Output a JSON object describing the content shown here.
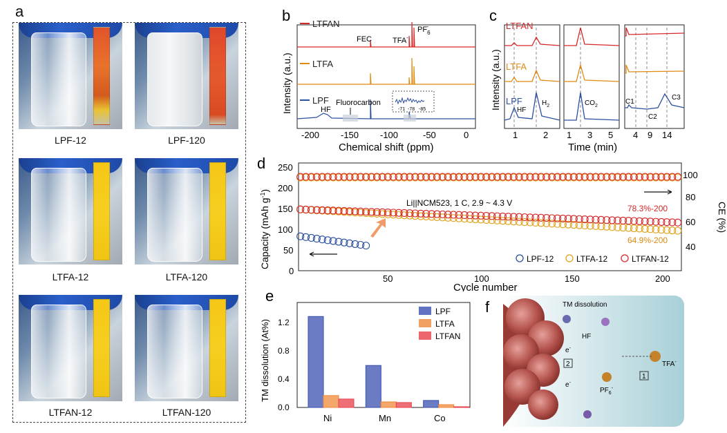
{
  "panel_a": {
    "label": "a",
    "captions": [
      "LPF-12",
      "LPF-120",
      "LTFA-12",
      "LTFA-120",
      "LTFAN-12",
      "LTFAN-120"
    ]
  },
  "panel_b": {
    "label": "b",
    "series": [
      "LTFAN",
      "LTFA",
      "LPF"
    ],
    "colors": {
      "LTFAN": "#d62728",
      "LTFA": "#e08a12",
      "LPF": "#2b4fa0"
    },
    "annotations": {
      "fec": "FEC",
      "tfa": "TFA",
      "tfa_sup": "-",
      "pf6": "PF",
      "pf6_sub": "6",
      "pf6_sup": "-",
      "hf": "HF",
      "fluorocarbon": "Fluorocarbon",
      "inset_ticks": [
        "-71",
        "-78",
        "-85"
      ]
    },
    "ylabel": "Intensity (a.u.)",
    "xlabel": "Chemical shift (ppm)",
    "xticks": [
      "-200",
      "-150",
      "-100",
      "-50",
      "0"
    ]
  },
  "panel_c": {
    "label": "c",
    "series": [
      "LTFAN",
      "LTFA",
      "LPF"
    ],
    "ylabel": "Intensity (a.u.)",
    "xlabel": "Time (min)",
    "annotations": {
      "hf": "HF",
      "h2": "H",
      "h2_sub": "2",
      "co2": "CO",
      "co2_sub": "2",
      "c1": "C1",
      "c2": "C2",
      "c3": "C3"
    },
    "xticks1": [
      "1",
      "2"
    ],
    "xticks2": [
      "1",
      "3",
      "5"
    ],
    "xticks3": [
      "4",
      "9",
      "14"
    ]
  },
  "panel_d": {
    "label": "d",
    "ylabel_left": "Capacity (mAh g",
    "ylabel_left_sup": "-1",
    "ylabel_left_end": ")",
    "ylabel_right": "CE (%)",
    "xlabel": "Cycle number",
    "xticks": [
      "50",
      "100",
      "150",
      "200"
    ],
    "yticks_left": [
      "0",
      "50",
      "100",
      "150",
      "200",
      "250"
    ],
    "yticks_right": [
      "40",
      "60",
      "80",
      "100"
    ],
    "condition": "Li||NCM523, 1 C, 2.9 ~ 4.3 V",
    "ret_ltfan": "78.3%-200",
    "ret_ltfa": "64.9%-200",
    "legend": [
      "LPF-12",
      "LTFA-12",
      "LTFAN-12"
    ]
  },
  "panel_e": {
    "label": "e",
    "ylabel": "TM dissolution (At%)",
    "legend": [
      "LPF",
      "LTFA",
      "LTFAN"
    ],
    "colors": {
      "LPF": "#3a4fb0",
      "LTFA": "#f08a3a",
      "LTFAN": "#e8404a"
    }
  },
  "panel_f": {
    "label": "f",
    "tm_dissolution": "TM dissolution",
    "hf": "HF",
    "e": "e",
    "e_sup": "-",
    "num1": "1",
    "num2": "2",
    "tfa": "TFA",
    "tfa_sup": "-",
    "pf6": "PF",
    "pf6_sub": "6",
    "pf6_sup": "-"
  },
  "chart_data": [
    {
      "type": "bar",
      "panel": "e",
      "categories": [
        "Ni",
        "Mn",
        "Co"
      ],
      "series": [
        {
          "name": "LPF",
          "values": [
            1.3,
            0.6,
            0.1
          ]
        },
        {
          "name": "LTFA",
          "values": [
            0.17,
            0.08,
            0.04
          ]
        },
        {
          "name": "LTFAN",
          "values": [
            0.12,
            0.07,
            0.01
          ]
        }
      ],
      "ylabel": "TM dissolution (At%)",
      "ylim": [
        0,
        1.5
      ],
      "yticks": [
        "0.0",
        "0.4",
        "0.8",
        "1.2"
      ]
    },
    {
      "type": "scatter",
      "panel": "d",
      "xlabel": "Cycle number",
      "ylabel": "Capacity (mAh g-1)",
      "xlim": [
        0,
        210
      ],
      "ylim": [
        0,
        260
      ],
      "series": [
        {
          "name": "LPF-12",
          "capacity_start": 83,
          "capacity_end": 60,
          "cycles": [
            1,
            38
          ]
        },
        {
          "name": "LTFA-12",
          "capacity_start": 148,
          "capacity_end": 96,
          "cycles": [
            1,
            210
          ]
        },
        {
          "name": "LTFAN-12",
          "capacity_start": 148,
          "capacity_end": 116,
          "cycles": [
            1,
            210
          ]
        }
      ]
    }
  ]
}
